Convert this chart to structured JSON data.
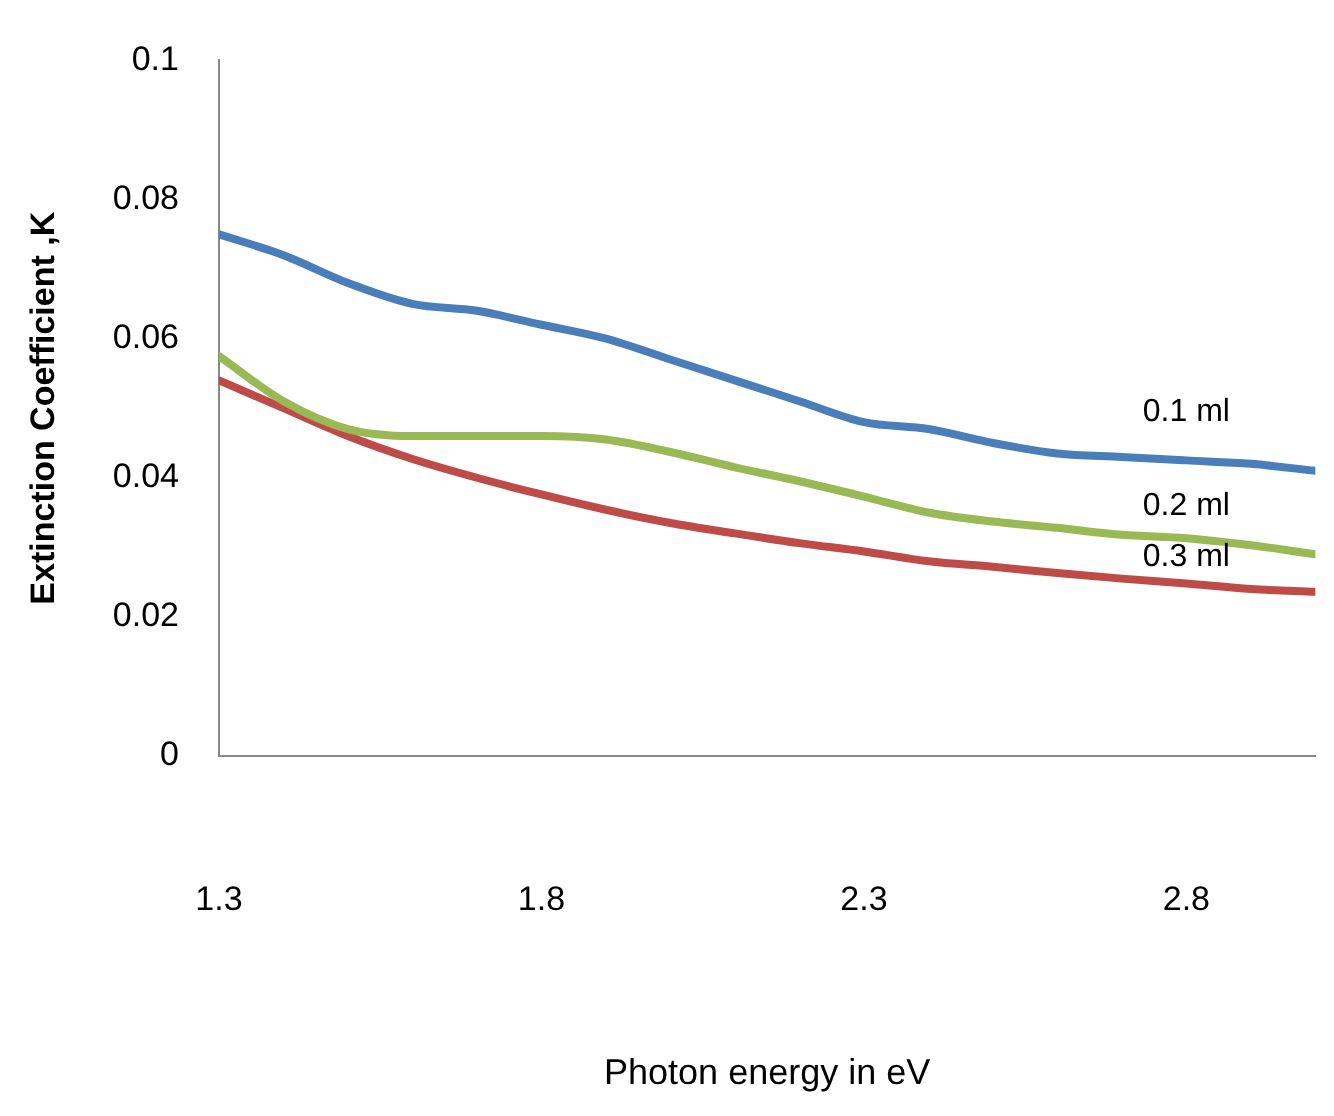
{
  "chart_data": {
    "type": "line",
    "xlabel": "Photon energy in eV",
    "ylabel": "Extinction Coefficient ,K",
    "x": [
      1.3,
      1.4,
      1.5,
      1.6,
      1.7,
      1.8,
      1.9,
      2.0,
      2.1,
      2.2,
      2.3,
      2.4,
      2.5,
      2.6,
      2.7,
      2.8,
      2.9,
      3.0
    ],
    "series": [
      {
        "name": "0.1 ml",
        "color": "#4a7ebb",
        "values": [
          0.075,
          0.072,
          0.068,
          0.065,
          0.064,
          0.062,
          0.06,
          0.057,
          0.054,
          0.051,
          0.048,
          0.047,
          0.045,
          0.0435,
          0.043,
          0.0425,
          0.042,
          0.041
        ]
      },
      {
        "name": "0.2 ml",
        "color": "#98b954",
        "values": [
          0.0575,
          0.051,
          0.047,
          0.046,
          0.046,
          0.046,
          0.0455,
          0.0437,
          0.0415,
          0.0395,
          0.0373,
          0.035,
          0.0337,
          0.0328,
          0.0318,
          0.0313,
          0.0303,
          0.029
        ]
      },
      {
        "name": "0.3 ml",
        "color": "#be4b48",
        "values": [
          0.054,
          0.05,
          0.046,
          0.0427,
          0.04,
          0.0376,
          0.0354,
          0.0335,
          0.032,
          0.0306,
          0.0294,
          0.028,
          0.0272,
          0.0263,
          0.0255,
          0.0248,
          0.024,
          0.0236
        ]
      }
    ],
    "xlim": [
      1.3,
      3.0
    ],
    "xticks": [
      1.3,
      1.8,
      2.3,
      2.8
    ],
    "ylim": [
      0,
      0.1
    ],
    "yticks": [
      0,
      0.02,
      0.04,
      0.06,
      0.08,
      0.1
    ],
    "grid": false,
    "legend": false,
    "marker": "none",
    "line_style": "solid"
  }
}
